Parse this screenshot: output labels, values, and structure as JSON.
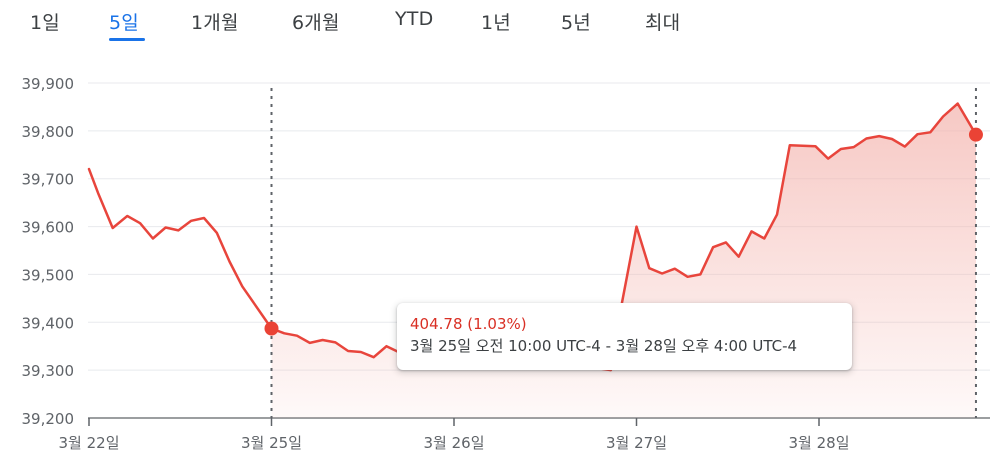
{
  "tabs": [
    {
      "label": "1일",
      "active": false
    },
    {
      "label": "5일",
      "active": true
    },
    {
      "label": "1개월",
      "active": false
    },
    {
      "label": "6개월",
      "active": false
    },
    {
      "label": "YTD",
      "active": false
    },
    {
      "label": "1년",
      "active": false
    },
    {
      "label": "5년",
      "active": false
    },
    {
      "label": "최대",
      "active": false
    }
  ],
  "tooltip": {
    "change": "404.78 (1.03%)",
    "range": "3월 25일 오전 10:00 UTC-4 - 3월 28일 오후 4:00 UTC-4"
  },
  "colors": {
    "line": "#e8453c",
    "fill": "#f4b6b0",
    "accent": "#1a73e8",
    "grid": "#e8eaed",
    "marker": "#ea4335"
  },
  "chart_data": {
    "type": "area",
    "y_ticks": [
      "39,900",
      "39,800",
      "39,700",
      "39,600",
      "39,500",
      "39,400",
      "39,300",
      "39,200"
    ],
    "x_ticks": [
      "3월 22일",
      "3월 25일",
      "3월 26일",
      "3월 27일",
      "3월 28일"
    ],
    "ylim": [
      39200,
      39900
    ],
    "grid": true,
    "selection": {
      "start_x": 1.0,
      "end_x": 4.86,
      "start_y": 39387,
      "end_y": 39792
    },
    "series": [
      {
        "points": [
          [
            0.0,
            39720
          ],
          [
            0.05,
            39670
          ],
          [
            0.13,
            39597
          ],
          [
            0.21,
            39622
          ],
          [
            0.28,
            39607
          ],
          [
            0.35,
            39575
          ],
          [
            0.42,
            39598
          ],
          [
            0.49,
            39592
          ],
          [
            0.56,
            39612
          ],
          [
            0.63,
            39618
          ],
          [
            0.7,
            39587
          ],
          [
            0.77,
            39527
          ],
          [
            0.84,
            39475
          ],
          [
            1.0,
            39387
          ],
          [
            1.07,
            39377
          ],
          [
            1.14,
            39372
          ],
          [
            1.21,
            39357
          ],
          [
            1.28,
            39363
          ],
          [
            1.35,
            39358
          ],
          [
            1.42,
            39340
          ],
          [
            1.49,
            39338
          ],
          [
            1.56,
            39327
          ],
          [
            1.63,
            39350
          ],
          [
            1.7,
            39337
          ],
          [
            1.77,
            39355
          ],
          [
            2.0,
            39330
          ],
          [
            2.5,
            39320
          ],
          [
            2.86,
            39300
          ],
          [
            2.92,
            39440
          ],
          [
            3.0,
            39600
          ],
          [
            3.07,
            39513
          ],
          [
            3.14,
            39502
          ],
          [
            3.21,
            39512
          ],
          [
            3.28,
            39495
          ],
          [
            3.35,
            39500
          ],
          [
            3.42,
            39557
          ],
          [
            3.49,
            39567
          ],
          [
            3.56,
            39537
          ],
          [
            3.63,
            39590
          ],
          [
            3.7,
            39575
          ],
          [
            3.77,
            39625
          ],
          [
            3.84,
            39770
          ],
          [
            3.91,
            39769
          ],
          [
            3.98,
            39768
          ],
          [
            4.05,
            39742
          ],
          [
            4.12,
            39762
          ],
          [
            4.19,
            39766
          ],
          [
            4.26,
            39784
          ],
          [
            4.33,
            39789
          ],
          [
            4.4,
            39783
          ],
          [
            4.47,
            39767
          ],
          [
            4.54,
            39793
          ],
          [
            4.61,
            39797
          ],
          [
            4.68,
            39830
          ],
          [
            4.76,
            39857
          ],
          [
            4.86,
            39792
          ]
        ]
      }
    ]
  }
}
